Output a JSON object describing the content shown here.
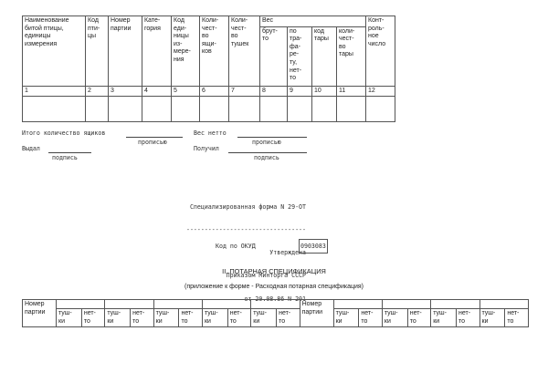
{
  "top_table": {
    "headers": [
      "Наименование битой птицы, единицы измерения",
      "Код\nпти-\nцы",
      "Номер партии",
      "Кате-\nгория",
      "Код\nеди-\nницы\nиз-\nмере-\nния",
      "Коли-\nчест-\nво\nящи-\nков",
      "Коли-\nчест-\nво\nтушек",
      "Вес",
      "Конт-\nроль-\nное\nчисло"
    ],
    "weight_sub": [
      "брут-\nто",
      "по\nтра-\nфа-\nре-\nту,\nнет-\nто",
      "код\nтары",
      "коли-\nчест-\nво\nтары"
    ],
    "numbers": [
      "1",
      "2",
      "3",
      "4",
      "5",
      "6",
      "7",
      "8",
      "9",
      "10",
      "11",
      "12"
    ]
  },
  "signatures": {
    "total_boxes": "Итого количество ящиков",
    "in_words_1": "прописью",
    "net_weight": "Вес нетто",
    "in_words_2": "прописью",
    "issued": "Выдал",
    "signature_1": "подпись",
    "received": "Получил",
    "signature_2": "подпись"
  },
  "form_info": {
    "form_name": "Специализированная форма N 29-ОТ",
    "dashes": "---------------------------------",
    "approved": "Утверждена",
    "order": "Приказом Минторга СССР",
    "date": "от 20.08.86 N 201",
    "okud_label": "Код по ОКУД",
    "okud_code": "0903083"
  },
  "section": {
    "title": "II. ПОТАРНАЯ СПЕЦИФИКАЦИЯ",
    "subtitle": "(приложение к форме - Расходная потарная спецификация)"
  },
  "bottom_table": {
    "batch": "Номер\nпартии",
    "carcasses": "туш-\nки",
    "net": "нет-\nто"
  }
}
